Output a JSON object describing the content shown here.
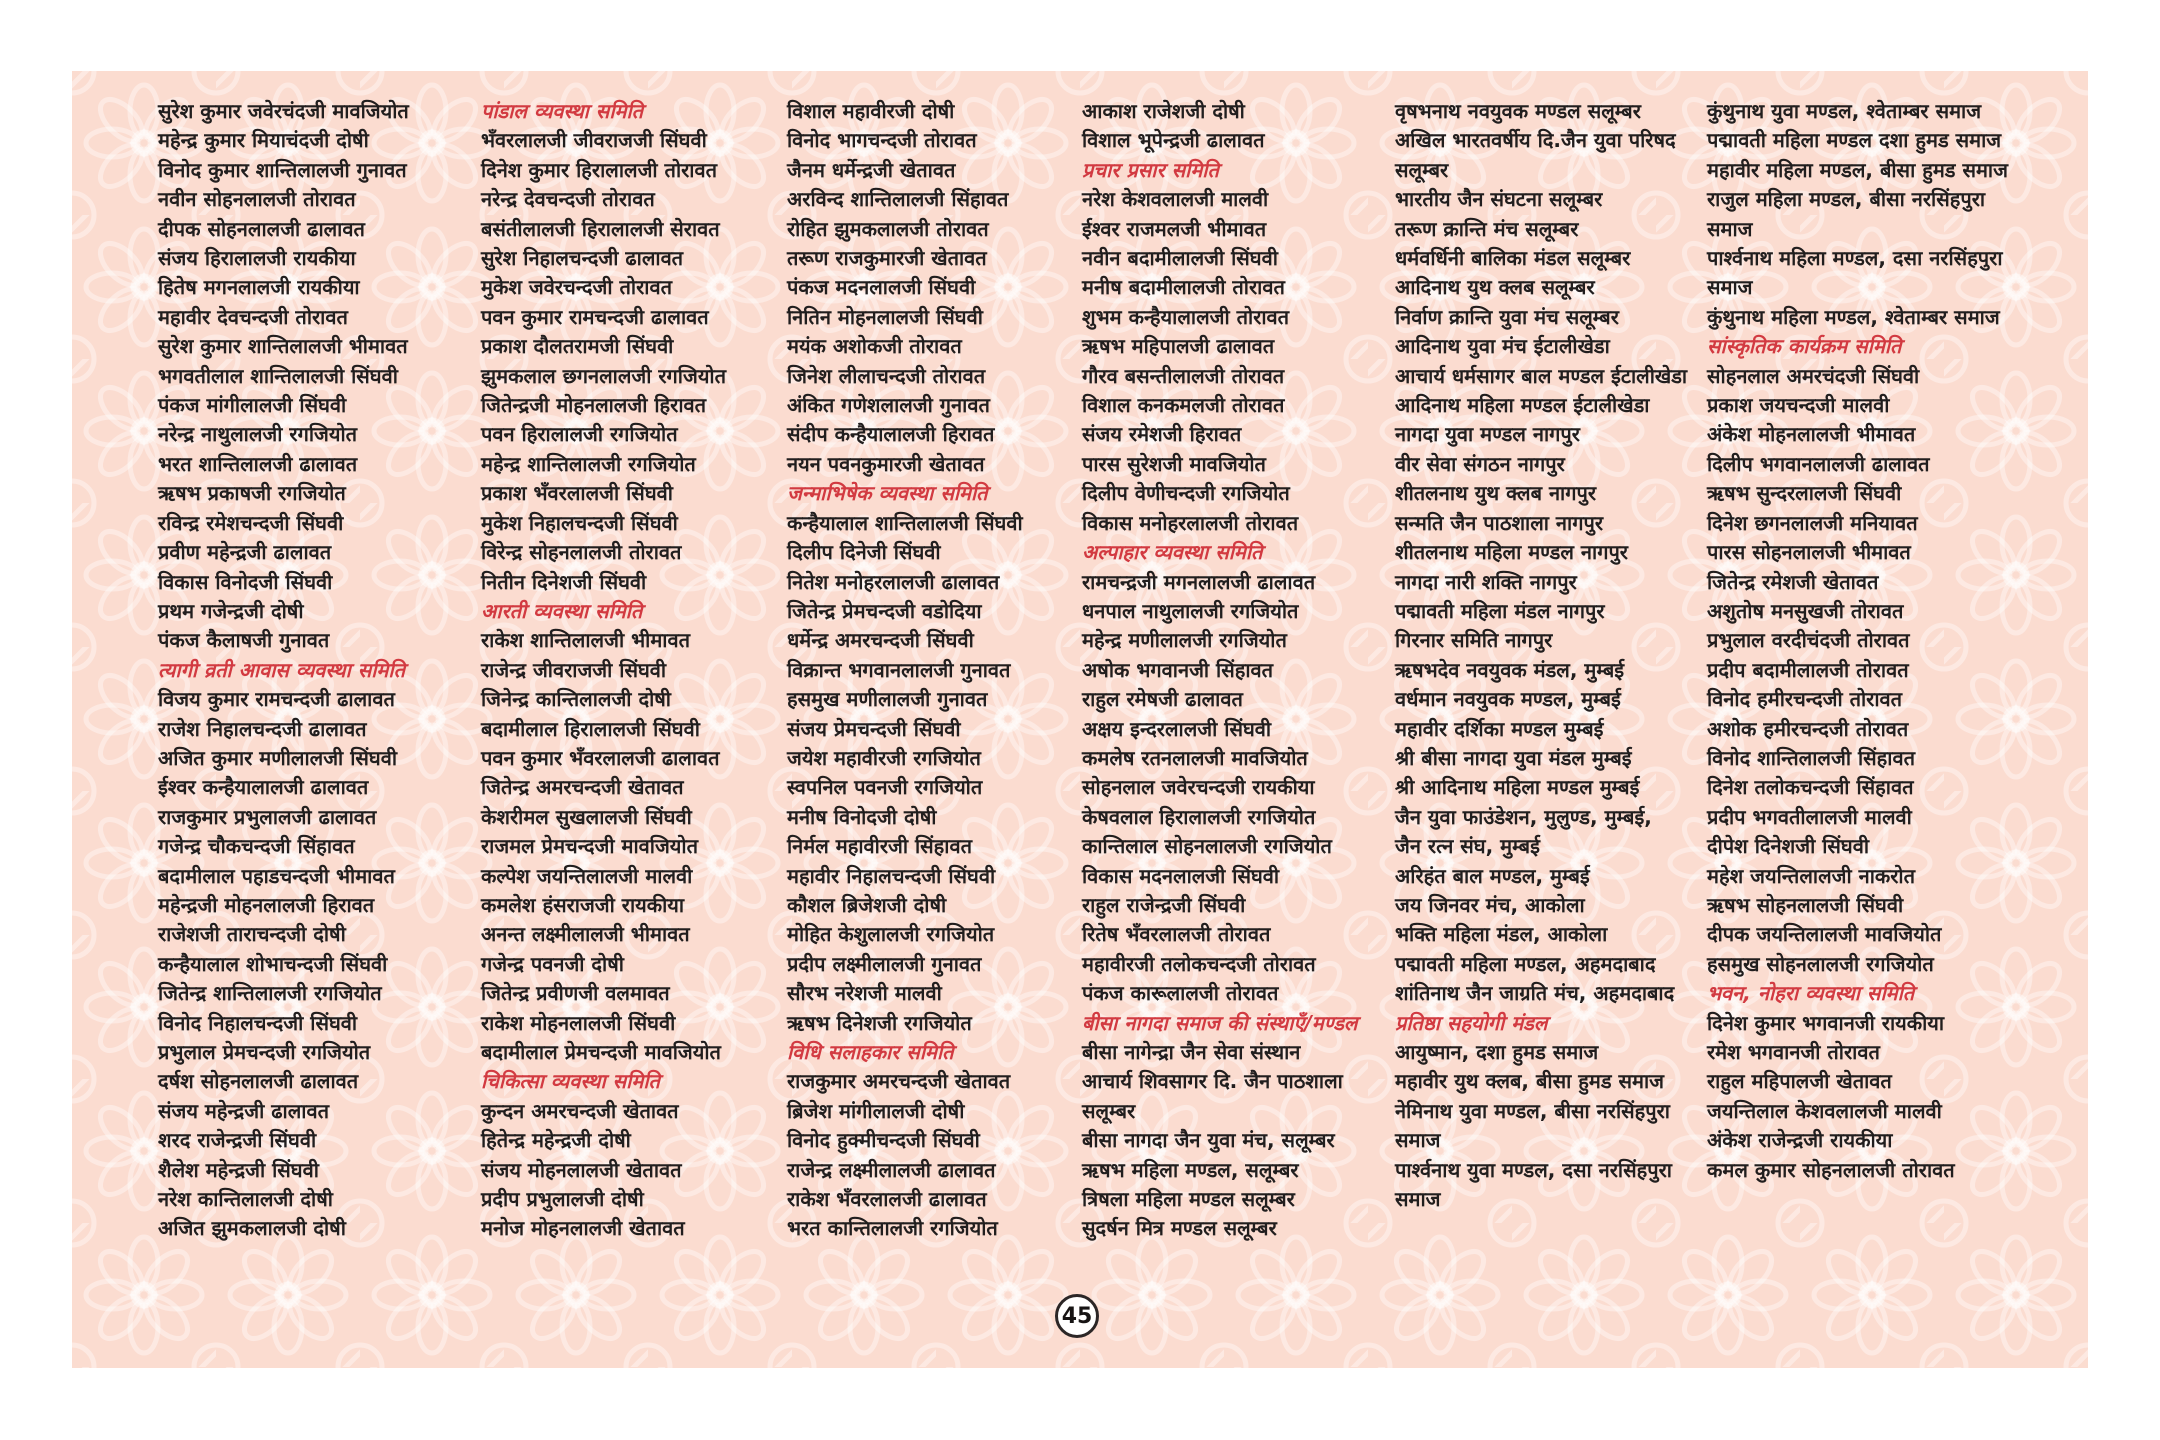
{
  "page": {
    "number": "45"
  },
  "colors": {
    "panel_bg": "#fbdcd0",
    "pattern": "#ffffff",
    "heading_red": "#d23a41",
    "text": "#211e1e",
    "page_margin": "#ffffff"
  },
  "columns": [
    {
      "items": [
        "सुरेश कुमार जवेरचंदजी मावजियोत",
        "महेन्द्र कुमार मियाचंदजी दोषी",
        "विनोद कुमार शान्तिलालजी गुनावत",
        "नवीन सोहनलालजी तोरावत",
        "दीपक सोहनलालजी ढालावत",
        "संजय हिरालालजी रायकीया",
        "हितेष मगनलालजी रायकीया",
        "महावीर देवचन्दजी तोरावत",
        "सुरेश कुमार शान्तिलालजी भीमावत",
        "भगवतीलाल शान्तिलालजी सिंघवी",
        "पंकज मांगीलालजी सिंघवी",
        "नरेन्द्र नाथुलालजी रगजियोत",
        "भरत शान्तिलालजी ढालावत",
        "ऋषभ प्रकाषजी रगजियोत",
        "रविन्द्र रमेशचन्दजी सिंघवी",
        "प्रवीण महेन्द्रजी ढालावत",
        "विकास विनोदजी सिंघवी",
        "प्रथम गजेन्द्रजी दोषी",
        "पंकज कैलाषजी गुनावत",
        {
          "heading": true,
          "text": "त्यागी व्रती आवास व्यवस्था समिति"
        },
        "विजय कुमार रामचन्दजी ढालावत",
        "राजेश निहालचन्दजी ढालावत",
        "अजित कुमार मणीलालजी सिंघवी",
        "ईश्वर कन्हैयालालजी ढालावत",
        "राजकुमार प्रभुलालजी ढालावत",
        "गजेन्द्र चौकचन्दजी सिंहावत",
        "बदामीलाल पहाडचन्दजी भीमावत",
        "महेन्द्रजी मोहनलालजी हिरावत",
        "राजेशजी ताराचन्दजी दोषी",
        "कन्हैयालाल शोभाचन्दजी सिंघवी",
        "जितेन्द्र शान्तिलालजी रगजियोत",
        "विनोद निहालचन्दजी सिंघवी",
        "प्रभुलाल प्रेमचन्दजी रगजियोत",
        "दर्षश सोहनलालजी ढालावत",
        "संजय महेन्द्रजी ढालावत",
        "शरद राजेन्द्रजी सिंघवी",
        "शैलेश महेन्द्रजी सिंघवी",
        "नरेश कान्तिलालजी दोषी",
        "अजित झुमकलालजी दोषी"
      ]
    },
    {
      "items": [
        {
          "heading": true,
          "text": "पांडाल व्यवस्था समिति"
        },
        "भँवरलालजी जीवराजजी सिंघवी",
        "दिनेश कुमार हिरालालजी तोरावत",
        "नरेन्द्र देवचन्दजी तोरावत",
        "बसंतीलालजी हिरालालजी सेरावत",
        "सुरेश निहालचन्दजी ढालावत",
        "मुकेश जवेरचन्दजी तोरावत",
        "पवन कुमार रामचन्दजी ढालावत",
        "प्रकाश दौलतरामजी सिंघवी",
        "झुमकलाल छगनलालजी रगजियोत",
        "जितेन्द्रजी मोहनलालजी हिरावत",
        "पवन हिरालालजी रगजियोत",
        "महेन्द्र शान्तिलालजी रगजियोत",
        "प्रकाश भँवरलालजी सिंघवी",
        "मुकेश निहालचन्दजी सिंघवी",
        "विरेन्द्र सोहनलालजी तोरावत",
        "नितीन दिनेशजी सिंघवी",
        {
          "heading": true,
          "text": "आरती व्यवस्था समिति"
        },
        "राकेश शान्तिलालजी भीमावत",
        "राजेन्द्र जीवराजजी सिंघवी",
        "जिनेन्द्र कान्तिलालजी दोषी",
        "बदामीलाल हिरालालजी सिंघवी",
        "पवन कुमार भँवरलालजी ढालावत",
        "जितेन्द्र अमरचन्दजी खेतावत",
        "केशरीमल सुखलालजी सिंघवी",
        "राजमल प्रेमचन्दजी मावजियोत",
        "कल्पेश जयन्तिलालजी मालवी",
        "कमलेश हंसराजजी रायकीया",
        "अनन्त लक्ष्मीलालजी भीमावत",
        "गजेन्द्र पवनजी दोषी",
        "जितेन्द्र प्रवीणजी वलमावत",
        "राकेश मोहनलालजी सिंघवी",
        "बदामीलाल प्रेमचन्दजी मावजियोत",
        {
          "heading": true,
          "text": "चिकित्सा व्यवस्था समिति"
        },
        "कुन्दन अमरचन्दजी खेतावत",
        "हितेन्द्र महेन्द्रजी दोषी",
        "संजय मोहनलालजी खेतावत",
        "प्रदीप प्रभुलालजी दोषी",
        "मनोज मोहनलालजी खेतावत"
      ]
    },
    {
      "items": [
        "विशाल महावीरजी दोषी",
        "विनोद भागचन्दजी तोरावत",
        "जैनम धर्मेन्द्रजी खेतावत",
        "अरविन्द शान्तिलालजी सिंहावत",
        "रोहित झुमकलालजी तोरावत",
        "तरूण राजकुमारजी खेतावत",
        "पंकज मदनलालजी सिंघवी",
        "नितिन मोहनलालजी सिंघवी",
        "मयंक अशोकजी तोरावत",
        "जिनेश लीलाचन्दजी तोरावत",
        "अंकित गणेशलालजी गुनावत",
        "संदीप कन्हैयालालजी हिरावत",
        "नयन पवनकुमारजी खेतावत",
        {
          "heading": true,
          "text": "जन्माभिषेक व्यवस्था समिति"
        },
        "कन्हैयालाल शान्तिलालजी सिंघवी",
        "दिलीप दिनेजी सिंघवी",
        "नितेश मनोहरलालजी ढालावत",
        "जितेन्द्र प्रेमचन्दजी वडोदिया",
        "धर्मेन्द्र अमरचन्दजी सिंघवी",
        "विक्रान्त भगवानलालजी गुनावत",
        "हसमुख मणीलालजी गुनावत",
        "संजय प्रेमचन्दजी सिंघवी",
        "जयेश महावीरजी रगजियोत",
        "स्वपनिल पवनजी रगजियोत",
        "मनीष विनोदजी दोषी",
        "निर्मल महावीरजी सिंहावत",
        "महावीर निहालचन्दजी सिंघवी",
        "कौशल ब्रिजेशजी दोषी",
        "मोहित केशुलालजी रगजियोत",
        "प्रदीप लक्ष्मीलालजी गुनावत",
        "सौरभ नरेशजी मालवी",
        "ऋषभ दिनेशजी रगजियोत",
        {
          "heading": true,
          "text": "विधि सलाहकार समिति"
        },
        "राजकुमार अमरचन्दजी खेतावत",
        "ब्रिजेश मांगीलालजी दोषी",
        "विनोद हुक्मीचन्दजी सिंघवी",
        "राजेन्द्र लक्ष्मीलालजी ढालावत",
        "राकेश भँवरलालजी ढालावत",
        "भरत कान्तिलालजी रगजियोत"
      ]
    },
    {
      "items": [
        "आकाश राजेशजी दोषी",
        "विशाल भूपेन्द्रजी ढालावत",
        {
          "heading": true,
          "text": "प्रचार प्रसार समिति"
        },
        "नरेश केशवलालजी मालवी",
        "ईश्वर राजमलजी भीमावत",
        "नवीन बदामीलालजी सिंघवी",
        "मनीष बदामीलालजी तोरावत",
        "शुभम कन्हैयालालजी तोरावत",
        "ऋषभ महिपालजी ढालावत",
        "गौरव बसन्तीलालजी तोरावत",
        "विशाल कनकमलजी तोरावत",
        "संजय रमेशजी हिरावत",
        "पारस सुरेशजी मावजियोत",
        "दिलीप वेणीचन्दजी रगजियोत",
        "विकास मनोहरलालजी तोरावत",
        {
          "heading": true,
          "text": "अल्पाहार व्यवस्था समिति"
        },
        "रामचन्द्रजी मगनलालजी ढालावत",
        "धनपाल नाथुलालजी रगजियोत",
        "महेन्द्र मणीलालजी रगजियोत",
        "अषोक भगवानजी सिंहावत",
        "राहुल रमेषजी ढालावत",
        "अक्षय इन्दरलालजी सिंघवी",
        "कमलेष रतनलालजी मावजियोत",
        "सोहनलाल जवेरचन्दजी रायकीया",
        "केषवलाल हिरालालजी रगजियोत",
        "कान्तिलाल सोहनलालजी रगजियोत",
        "विकास मदनलालजी सिंघवी",
        "राहुल राजेन्द्रजी सिंघवी",
        "रितेष भँवरलालजी तोरावत",
        "महावीरजी तलोकचन्दजी तोरावत",
        "पंकज कारूलालजी तोरावत",
        {
          "heading": true,
          "text": "बीसा नागदा समाज की संस्थाएँ/मण्डल"
        },
        "बीसा नागेन्द्रा जैन सेवा संस्थान",
        "आचार्य शिवसागर दि. जैन पाठशाला सलूम्बर",
        "बीसा नागदा जैन युवा मंच, सलूम्बर",
        "ऋषभ महिला मण्डल, सलूम्बर",
        "त्रिषला महिला मण्डल सलूम्बर",
        "सुदर्षन मित्र मण्डल सलूम्बर"
      ]
    },
    {
      "items": [
        "वृषभनाथ नवयुवक मण्डल सलूम्बर",
        "अखिल भारतवर्षीय दि.जैन युवा परिषद सलूम्बर",
        "भारतीय जैन संघटना सलूम्बर",
        "तरूण क्रान्ति मंच सलूम्बर",
        "धर्मवर्धिनी बालिका मंडल सलूम्बर",
        "आदिनाथ युथ क्लब सलूम्बर",
        "निर्वाण क्रान्ति युवा मंच सलूम्बर",
        "आदिनाथ युवा मंच ईटालीखेडा",
        "आचार्य धर्मसागर बाल मण्डल ईटालीखेडा",
        "आदिनाथ महिला मण्डल ईटालीखेडा",
        "नागदा युवा मण्डल नागपुर",
        "वीर सेवा संगठन नागपुर",
        "शीतलनाथ युथ क्लब नागपुर",
        "सन्मति जैन पाठशाला नागपुर",
        "शीतलनाथ महिला मण्डल नागपुर",
        "नागदा नारी शक्ति नागपुर",
        "पद्मावती महिला मंडल नागपुर",
        "गिरनार समिति नागपुर",
        "ऋषभदेव नवयुवक मंडल, मुम्बई",
        "वर्धमान नवयुवक मण्डल, मुम्बई",
        "महावीर दर्शिका मण्डल मुम्बई",
        "श्री बीसा नागदा युवा मंडल मुम्बई",
        "श्री आदिनाथ महिला मण्डल मुम्बई",
        "जैन युवा फाउंडेशन, मुलुण्ड, मुम्बई,",
        "जैन रत्न संघ, मुम्बई",
        "अरिहंत बाल मण्डल, मुम्बई",
        "जय जिनवर मंच, आकोला",
        "भक्ति महिला मंडल, आकोला",
        "पद्मावती महिला मण्डल, अहमदाबाद",
        "शांतिनाथ जैन जाग्रति मंच, अहमदाबाद",
        {
          "heading": true,
          "text": "प्रतिष्ठा सहयोगी मंडल"
        },
        "आयुष्मान, दशा हुमड समाज",
        "महावीर युथ क्लब, बीसा हुमड समाज",
        "नेमिनाथ युवा मण्डल, बीसा नरसिंहपुरा समाज",
        "पार्श्वनाथ युवा मण्डल, दसा नरसिंहपुरा समाज"
      ]
    },
    {
      "items": [
        "कुंथुनाथ युवा मण्डल, श्वेताम्बर समाज",
        "पद्मावती महिला मण्डल दशा हुमड समाज",
        "महावीर महिला मण्डल, बीसा हुमड समाज",
        "राजुल महिला मण्डल, बीसा नरसिंहपुरा समाज",
        "पार्श्वनाथ महिला मण्डल, दसा नरसिंहपुरा समाज",
        "कुंथुनाथ महिला मण्डल, श्वेताम्बर समाज",
        {
          "heading": true,
          "text": "सांस्कृतिक कार्यक्रम समिति"
        },
        "सोहनलाल अमरचंदजी सिंघवी",
        "प्रकाश जयचन्दजी मालवी",
        "अंकेश मोहनलालजी भीमावत",
        "दिलीप भगवानलालजी ढालावत",
        "ऋषभ सुन्दरलालजी सिंघवी",
        "दिनेश छगनलालजी मनियावत",
        "पारस सोहनलालजी भीमावत",
        "जितेन्द्र रमेशजी खेतावत",
        "अशुतोष मनसुखजी तोरावत",
        "प्रभुलाल वरदीचंदजी तोरावत",
        "प्रदीप बदामीलालजी तोरावत",
        "विनोद हमीरचन्दजी तोरावत",
        "अशोक हमीरचन्दजी तोरावत",
        "विनोद शान्तिलालजी सिंहावत",
        "दिनेश तलोकचन्दजी सिंहावत",
        "प्रदीप भगवतीलालजी मालवी",
        "दीपेश दिनेशजी सिंघवी",
        "महेश जयन्तिलालजी नाकरोत",
        "ऋषभ सोहनलालजी सिंघवी",
        "दीपक जयन्तिलालजी मावजियोत",
        "हसमुख सोहनलालजी रगजियोत",
        {
          "heading": true,
          "text": "भवन, नोहरा व्यवस्था समिति"
        },
        "दिनेश कुमार भगवानजी रायकीया",
        "रमेश भगवानजी तोरावत",
        "राहुल महिपालजी खेतावत",
        "जयन्तिलाल केशवलालजी मालवी",
        "अंकेश राजेन्द्रजी रायकीया",
        "कमल कुमार सोहनलालजी तोरावत"
      ]
    }
  ]
}
